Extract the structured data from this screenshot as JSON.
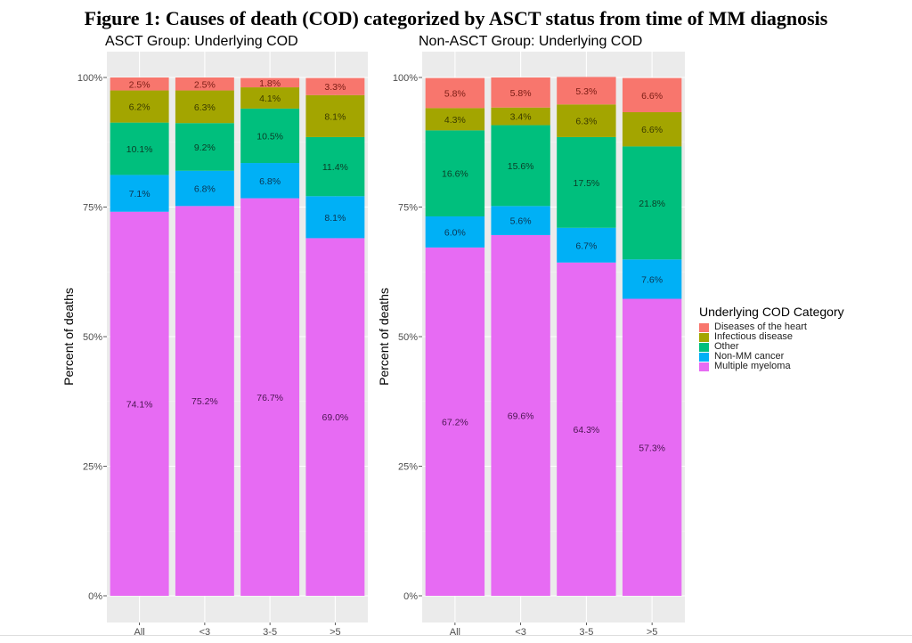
{
  "figure_title": "Figure 1: Causes of death (COD) categorized by ASCT status from time of MM diagnosis",
  "legend": {
    "title": "Underlying COD Category",
    "items": [
      {
        "label": "Diseases of the heart",
        "color": "#F8766D"
      },
      {
        "label": "Infectious disease",
        "color": "#A3A500"
      },
      {
        "label": "Other",
        "color": "#00BF7D"
      },
      {
        "label": "Non-MM cancer",
        "color": "#00B0F6"
      },
      {
        "label": "Multiple myeloma",
        "color": "#E76BF3"
      }
    ]
  },
  "chart_data": [
    {
      "type": "bar",
      "stacked": true,
      "title": "ASCT Group: Underlying COD",
      "xlabel": "",
      "ylabel": "Percent of deaths",
      "ylim": [
        0,
        100
      ],
      "yticks": [
        "0%",
        "25%",
        "50%",
        "75%",
        "100%"
      ],
      "categories": [
        "All",
        "<3",
        "3-5",
        ">5"
      ],
      "series": [
        {
          "name": "Multiple myeloma",
          "values": [
            74.1,
            75.2,
            76.7,
            69.0
          ]
        },
        {
          "name": "Non-MM cancer",
          "values": [
            7.1,
            6.8,
            6.8,
            8.1
          ]
        },
        {
          "name": "Other",
          "values": [
            10.1,
            9.2,
            10.5,
            11.4
          ]
        },
        {
          "name": "Infectious disease",
          "values": [
            6.2,
            6.3,
            4.1,
            8.1
          ]
        },
        {
          "name": "Diseases of the heart",
          "values": [
            2.5,
            2.5,
            1.8,
            3.3
          ]
        }
      ],
      "grid": true,
      "legend": "right"
    },
    {
      "type": "bar",
      "stacked": true,
      "title": "Non-ASCT Group: Underlying COD",
      "xlabel": "",
      "ylabel": "Percent of deaths",
      "ylim": [
        0,
        100
      ],
      "yticks": [
        "0%",
        "25%",
        "50%",
        "75%",
        "100%"
      ],
      "categories": [
        "All",
        "<3",
        "3-5",
        ">5"
      ],
      "series": [
        {
          "name": "Multiple myeloma",
          "values": [
            67.2,
            69.6,
            64.3,
            57.3
          ]
        },
        {
          "name": "Non-MM cancer",
          "values": [
            6.0,
            5.6,
            6.7,
            7.6
          ]
        },
        {
          "name": "Other",
          "values": [
            16.6,
            15.6,
            17.5,
            21.8
          ]
        },
        {
          "name": "Infectious disease",
          "values": [
            4.3,
            3.4,
            6.3,
            6.6
          ]
        },
        {
          "name": "Diseases of the heart",
          "values": [
            5.8,
            5.8,
            5.3,
            6.6
          ]
        }
      ],
      "grid": true,
      "legend": "right"
    }
  ]
}
